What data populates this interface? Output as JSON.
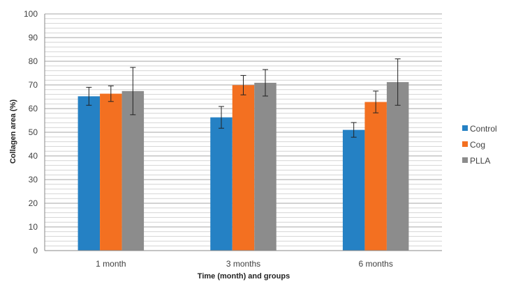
{
  "chart_data": {
    "type": "bar",
    "title": "",
    "xlabel": "Time (month) and groups",
    "ylabel": "Collagen area (%)",
    "categories": [
      "1 month",
      "3 months",
      "6 months"
    ],
    "ylim": [
      0,
      100
    ],
    "y_major_ticks": [
      0,
      10,
      20,
      30,
      40,
      50,
      60,
      70,
      80,
      90,
      100
    ],
    "y_minor_grid_step": 2,
    "grid": true,
    "legend_position": "right",
    "series": [
      {
        "name": "Control",
        "color": "#2581c4",
        "values": [
          65.2,
          56.3,
          51.0
        ],
        "errors": [
          3.8,
          4.6,
          3.1
        ]
      },
      {
        "name": "Cog",
        "color": "#f37021",
        "values": [
          66.3,
          69.9,
          62.8
        ],
        "errors": [
          3.3,
          4.1,
          4.6
        ]
      },
      {
        "name": "PLLA",
        "color": "#8c8c8c",
        "values": [
          67.4,
          70.9,
          71.2
        ],
        "errors": [
          10.0,
          5.6,
          9.8
        ]
      }
    ]
  }
}
